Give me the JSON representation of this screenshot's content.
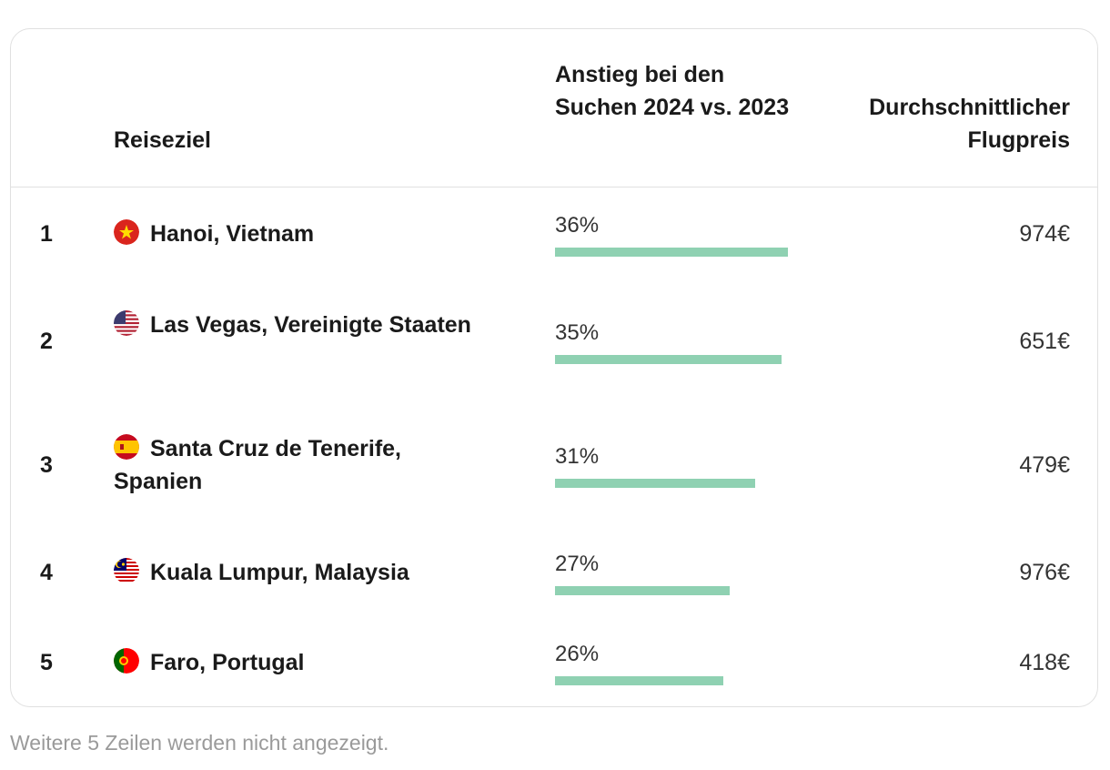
{
  "table": {
    "headers": {
      "destination": "Reiseziel",
      "increase": "Anstieg bei den Suchen 2024 vs. 2023",
      "price": "Durchschnittlicher Flugpreis"
    },
    "rows": [
      {
        "rank": "1",
        "destination": "Hanoi, Vietnam",
        "flag_icon": "vietnam-flag-icon",
        "increase_label": "36%",
        "increase_value": 36,
        "price": "974€"
      },
      {
        "rank": "2",
        "destination": "Las Vegas, Vereinigte Staaten",
        "flag_icon": "usa-flag-icon",
        "increase_label": "35%",
        "increase_value": 35,
        "price": "651€"
      },
      {
        "rank": "3",
        "destination": "Santa Cruz de Tenerife, Spanien",
        "flag_icon": "spain-flag-icon",
        "increase_label": "31%",
        "increase_value": 31,
        "price": "479€"
      },
      {
        "rank": "4",
        "destination": "Kuala Lumpur, Malaysia",
        "flag_icon": "malaysia-flag-icon",
        "increase_label": "27%",
        "increase_value": 27,
        "price": "976€"
      },
      {
        "rank": "5",
        "destination": "Faro, Portugal",
        "flag_icon": "portugal-flag-icon",
        "increase_label": "26%",
        "increase_value": 26,
        "price": "418€"
      }
    ]
  },
  "footer_note": "Weitere 5 Zeilen werden nicht angezeigt.",
  "colors": {
    "bar": "#8fd1b2",
    "border": "#e0e0e0",
    "muted_text": "#9a9a9a"
  }
}
